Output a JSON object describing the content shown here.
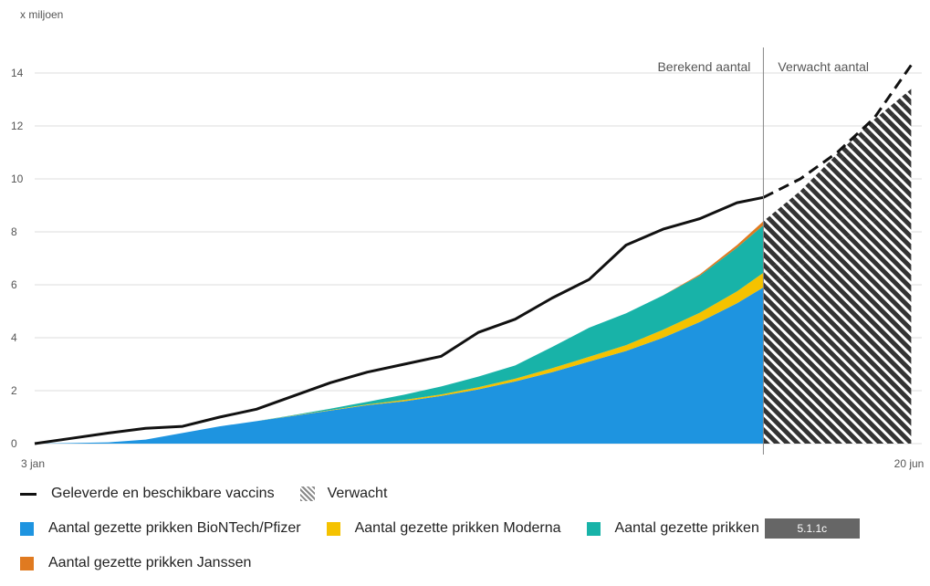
{
  "chart_data": {
    "type": "area",
    "ylabel": "x miljoen",
    "ylim": [
      0,
      14
    ],
    "yticks": [
      0,
      2,
      4,
      6,
      8,
      10,
      12,
      14
    ],
    "x_ticks": [
      "3 jan",
      "20 jun"
    ],
    "x_range_days": [
      0,
      168
    ],
    "projection_start_day": 138,
    "annotations": [
      "Berekend aantal",
      "Verwacht aantal"
    ],
    "grid": true,
    "colors": {
      "line": "#111111",
      "pfizer": "#1e94e0",
      "moderna": "#f5c200",
      "astrazeneca": "#18b3a8",
      "janssen": "#e07a20"
    },
    "x": [
      0,
      7,
      14,
      21,
      28,
      35,
      42,
      49,
      56,
      63,
      70,
      77,
      84,
      91,
      98,
      105,
      112,
      119,
      126,
      133,
      138,
      145,
      152,
      159,
      166
    ],
    "series": [
      {
        "name": "Aantal gezette prikken BioNTech/Pfizer",
        "key": "pfizer",
        "values": [
          0,
          0.02,
          0.05,
          0.15,
          0.4,
          0.65,
          0.85,
          1.05,
          1.25,
          1.45,
          1.6,
          1.8,
          2.05,
          2.35,
          2.7,
          3.1,
          3.5,
          4.0,
          4.6,
          5.3,
          5.9,
          6.7,
          7.6,
          8.4,
          9.2
        ]
      },
      {
        "name": "Aantal gezette prikken Moderna",
        "key": "moderna",
        "values": [
          0,
          0,
          0,
          0,
          0,
          0,
          0,
          0.01,
          0.02,
          0.03,
          0.05,
          0.06,
          0.08,
          0.1,
          0.15,
          0.18,
          0.22,
          0.3,
          0.35,
          0.45,
          0.55,
          0.65,
          0.75,
          0.85,
          0.95
        ]
      },
      {
        "name": "Aantal gezette prikken",
        "key": "astrazeneca",
        "values": [
          0,
          0,
          0,
          0,
          0,
          0,
          0,
          0.02,
          0.05,
          0.1,
          0.2,
          0.3,
          0.4,
          0.5,
          0.8,
          1.1,
          1.2,
          1.3,
          1.4,
          1.65,
          1.8,
          2.0,
          2.3,
          2.6,
          2.8
        ]
      },
      {
        "name": "Aantal gezette prikken Janssen",
        "key": "janssen",
        "values": [
          0,
          0,
          0,
          0,
          0,
          0,
          0,
          0,
          0,
          0,
          0,
          0,
          0,
          0,
          0,
          0,
          0,
          0,
          0.05,
          0.1,
          0.15,
          0.2,
          0.3,
          0.4,
          0.45
        ]
      },
      {
        "name": "Geleverde en beschikbare vaccins",
        "key": "line",
        "values": [
          0,
          0.2,
          0.4,
          0.58,
          0.65,
          1.0,
          1.3,
          1.8,
          2.3,
          2.7,
          3.0,
          3.3,
          4.2,
          4.7,
          5.5,
          6.2,
          7.5,
          8.1,
          8.5,
          9.1,
          9.3,
          10.0,
          11.0,
          12.3,
          14.3
        ]
      }
    ],
    "projected_line": [
      [
        138,
        9.3
      ],
      [
        145,
        10.0
      ],
      [
        152,
        11.0
      ],
      [
        159,
        12.3
      ],
      [
        166,
        14.3
      ]
    ]
  },
  "legend": {
    "line_label": "Geleverde en beschikbare vaccins",
    "hatch_label": "Verwacht",
    "pfizer_label": "Aantal gezette prikken BioNTech/Pfizer",
    "moderna_label": "Aantal gezette prikken Moderna",
    "astrazeneca_label": "Aantal gezette prikken",
    "janssen_label": "Aantal gezette prikken Janssen",
    "badge": "5.1.1c"
  }
}
